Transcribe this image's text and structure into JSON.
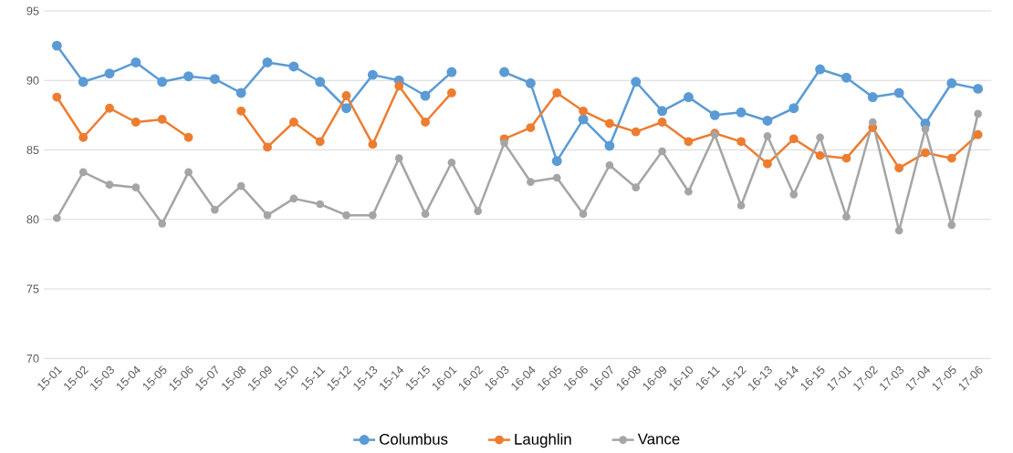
{
  "chart_data": {
    "type": "line",
    "categories": [
      "15-01",
      "15-02",
      "15-03",
      "15-04",
      "15-05",
      "15-06",
      "15-07",
      "15-08",
      "15-09",
      "15-10",
      "15-11",
      "15-12",
      "15-13",
      "15-14",
      "15-15",
      "16-01",
      "16-02",
      "16-03",
      "16-04",
      "16-05",
      "16-06",
      "16-07",
      "16-08",
      "16-09",
      "16-10",
      "16-11",
      "16-12",
      "16-13",
      "16-14",
      "16-15",
      "17-01",
      "17-02",
      "17-03",
      "17-04",
      "17-05",
      "17-06"
    ],
    "series": [
      {
        "name": "Columbus",
        "color": "#5b9bd5",
        "values": [
          92.5,
          89.9,
          90.5,
          91.3,
          89.9,
          90.3,
          90.1,
          89.1,
          91.3,
          91.0,
          89.9,
          88.0,
          90.4,
          90.0,
          88.9,
          90.6,
          null,
          90.6,
          89.8,
          84.2,
          87.2,
          85.3,
          89.9,
          87.8,
          88.8,
          87.5,
          87.7,
          87.1,
          88.0,
          90.8,
          90.2,
          88.8,
          89.1,
          86.9,
          89.8,
          89.4
        ]
      },
      {
        "name": "Laughlin",
        "color": "#ed7d31",
        "values": [
          88.8,
          85.9,
          88.0,
          87.0,
          87.2,
          85.9,
          null,
          87.8,
          85.2,
          87.0,
          85.6,
          88.9,
          85.4,
          89.6,
          87.0,
          89.1,
          null,
          85.8,
          86.6,
          89.1,
          87.8,
          86.9,
          86.3,
          87.0,
          85.6,
          86.2,
          85.6,
          84.0,
          85.8,
          84.6,
          84.4,
          86.6,
          83.7,
          84.8,
          84.4,
          86.1
        ]
      },
      {
        "name": "Vance",
        "color": "#a5a5a5",
        "values": [
          80.1,
          83.4,
          82.5,
          82.3,
          79.7,
          83.4,
          80.7,
          82.4,
          80.3,
          81.5,
          81.1,
          80.3,
          80.3,
          84.4,
          80.4,
          84.1,
          80.6,
          85.5,
          82.7,
          83.0,
          80.4,
          83.9,
          82.3,
          84.9,
          82.0,
          86.1,
          81.0,
          86.0,
          81.8,
          85.9,
          80.2,
          87.0,
          79.2,
          86.5,
          79.6,
          87.6
        ]
      }
    ],
    "ylim": [
      70,
      95
    ],
    "yticks": [
      70,
      75,
      80,
      85,
      90,
      95
    ],
    "grid": "y",
    "legend": "bottom",
    "marker": "circle",
    "line_style": "solid"
  }
}
